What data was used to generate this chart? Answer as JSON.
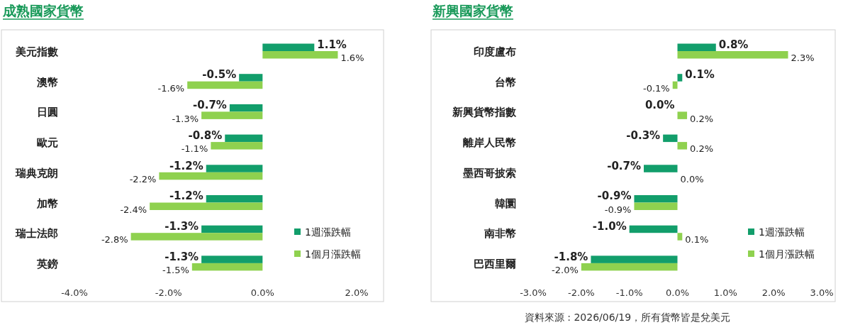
{
  "chart_data": [
    {
      "type": "bar",
      "orientation": "horizontal",
      "title": "成熟國家貨幣",
      "categories": [
        "美元指數",
        "澳幣",
        "日圓",
        "歐元",
        "瑞典克朗",
        "加幣",
        "瑞士法郎",
        "英鎊"
      ],
      "series": [
        {
          "name": "1週漲跌幅",
          "color": "#129e6b",
          "values": [
            1.1,
            -0.5,
            -0.7,
            -0.8,
            -1.2,
            -1.2,
            -1.3,
            -1.3
          ],
          "value_labels": [
            "1.1%",
            "-0.5%",
            "-0.7%",
            "-0.8%",
            "-1.2%",
            "-1.2%",
            "-1.3%",
            "-1.3%"
          ]
        },
        {
          "name": "1個月漲跌幅",
          "color": "#8fd14f",
          "values": [
            1.6,
            -1.6,
            -1.3,
            -1.1,
            -2.2,
            -2.4,
            -2.8,
            -1.5
          ],
          "value_labels": [
            "1.6%",
            "-1.6%",
            "-1.3%",
            "-1.1%",
            "-2.2%",
            "-2.4%",
            "-2.8%",
            "-1.5%"
          ]
        }
      ],
      "xlim": [
        -4,
        2
      ],
      "xticks": [
        {
          "value": -4,
          "label": "-4.0%"
        },
        {
          "value": -2,
          "label": "-2.0%"
        },
        {
          "value": 0,
          "label": "0.0%"
        },
        {
          "value": 2,
          "label": "2.0%"
        }
      ],
      "legend": "bottom right",
      "grid": false
    },
    {
      "type": "bar",
      "orientation": "horizontal",
      "title": "新興國家貨幣",
      "categories": [
        "印度盧布",
        "台幣",
        "新興貨幣指數",
        "離岸人民幣",
        "墨西哥披索",
        "韓圜",
        "南非幣",
        "巴西里爾"
      ],
      "series": [
        {
          "name": "1週漲跌幅",
          "color": "#129e6b",
          "values": [
            0.8,
            0.1,
            0.0,
            -0.3,
            -0.7,
            -0.9,
            -1.0,
            -1.8
          ],
          "value_labels": [
            "0.8%",
            "0.1%",
            "0.0%",
            "-0.3%",
            "-0.7%",
            "-0.9%",
            "-1.0%",
            "-1.8%"
          ]
        },
        {
          "name": "1個月漲跌幅",
          "color": "#8fd14f",
          "values": [
            2.3,
            -0.1,
            0.2,
            0.2,
            0.0,
            -0.9,
            0.1,
            -2.0
          ],
          "value_labels": [
            "2.3%",
            "-0.1%",
            "0.2%",
            "0.2%",
            "0.0%",
            "-0.9%",
            "0.1%",
            "-2.0%"
          ]
        }
      ],
      "xlim": [
        -3,
        3
      ],
      "xticks": [
        {
          "value": -3,
          "label": "-3.0%"
        },
        {
          "value": -2,
          "label": "-2.0%"
        },
        {
          "value": -1,
          "label": "-1.0%"
        },
        {
          "value": 0,
          "label": "0.0%"
        },
        {
          "value": 1,
          "label": "1.0%"
        },
        {
          "value": 2,
          "label": "2.0%"
        },
        {
          "value": 3,
          "label": "3.0%"
        }
      ],
      "legend": "bottom right",
      "grid": false,
      "annotations": [
        "資料來源 : 2026/06/19，所有貨幣皆是兌美元"
      ]
    }
  ]
}
